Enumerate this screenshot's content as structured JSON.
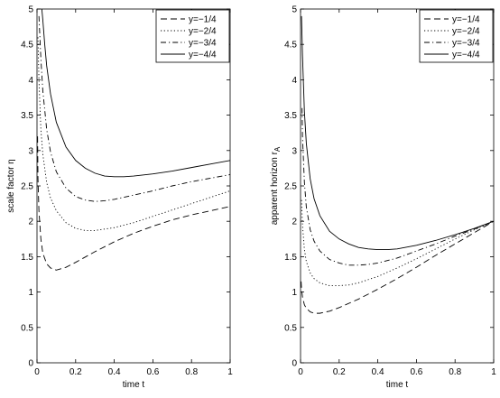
{
  "chart_data": [
    {
      "type": "line",
      "xlabel": "time t",
      "ylabel": "scale factor η",
      "xlim": [
        0,
        1
      ],
      "ylim": [
        0,
        5
      ],
      "xticks": [
        "0",
        "0.2",
        "0.4",
        "0.6",
        "0.8",
        "1"
      ],
      "yticks": [
        "0",
        "0.5",
        "1",
        "1.5",
        "2",
        "2.5",
        "3",
        "3.5",
        "4",
        "4.5",
        "5"
      ],
      "grid": false,
      "legend_position": "top-right",
      "series": [
        {
          "name": "y=−1/4",
          "style": "dashed",
          "x": [
            0.003,
            0.005,
            0.01,
            0.02,
            0.03,
            0.05,
            0.07,
            0.1,
            0.15,
            0.2,
            0.3,
            0.4,
            0.5,
            0.6,
            0.7,
            0.8,
            0.9,
            1.0
          ],
          "y": [
            3.2,
            2.6,
            2.15,
            1.75,
            1.55,
            1.4,
            1.34,
            1.31,
            1.35,
            1.42,
            1.57,
            1.71,
            1.83,
            1.93,
            2.02,
            2.09,
            2.15,
            2.21
          ]
        },
        {
          "name": "y=−2/4",
          "style": "dotted",
          "x": [
            0.005,
            0.01,
            0.02,
            0.03,
            0.05,
            0.07,
            0.1,
            0.15,
            0.2,
            0.25,
            0.3,
            0.4,
            0.5,
            0.6,
            0.7,
            0.8,
            0.9,
            1.0
          ],
          "y": [
            4.6,
            4.0,
            3.3,
            2.95,
            2.55,
            2.33,
            2.15,
            1.98,
            1.9,
            1.87,
            1.87,
            1.91,
            1.98,
            2.07,
            2.16,
            2.25,
            2.34,
            2.43
          ]
        },
        {
          "name": "y=−3/4",
          "style": "dashdot",
          "x": [
            0.01,
            0.02,
            0.03,
            0.05,
            0.07,
            0.1,
            0.15,
            0.2,
            0.25,
            0.3,
            0.35,
            0.4,
            0.5,
            0.6,
            0.7,
            0.8,
            0.9,
            1.0
          ],
          "y": [
            4.9,
            4.3,
            3.85,
            3.3,
            2.98,
            2.7,
            2.47,
            2.35,
            2.3,
            2.28,
            2.29,
            2.31,
            2.37,
            2.43,
            2.5,
            2.56,
            2.61,
            2.66
          ]
        },
        {
          "name": "y=−4/4",
          "style": "solid",
          "x": [
            0.025,
            0.03,
            0.04,
            0.05,
            0.07,
            0.1,
            0.15,
            0.2,
            0.25,
            0.3,
            0.35,
            0.4,
            0.45,
            0.5,
            0.6,
            0.7,
            0.8,
            0.9,
            1.0
          ],
          "y": [
            5.0,
            4.85,
            4.5,
            4.2,
            3.8,
            3.4,
            3.05,
            2.86,
            2.75,
            2.68,
            2.64,
            2.63,
            2.63,
            2.64,
            2.67,
            2.71,
            2.76,
            2.81,
            2.86
          ]
        }
      ]
    },
    {
      "type": "line",
      "xlabel": "time t",
      "ylabel": "apparent horizon r",
      "ylabel_sub": "A",
      "xlim": [
        0,
        1
      ],
      "ylim": [
        0,
        5
      ],
      "xticks": [
        "0",
        "0.2",
        "0.4",
        "0.6",
        "0.8",
        "1"
      ],
      "yticks": [
        "0",
        "0.5",
        "1",
        "1.5",
        "2",
        "2.5",
        "3",
        "3.5",
        "4",
        "4.5",
        "5"
      ],
      "grid": false,
      "legend_position": "top-right",
      "series": [
        {
          "name": "y=−1/4",
          "style": "dashed",
          "x": [
            0.003,
            0.005,
            0.01,
            0.02,
            0.03,
            0.05,
            0.07,
            0.1,
            0.15,
            0.2,
            0.3,
            0.4,
            0.5,
            0.6,
            0.7,
            0.8,
            0.9,
            1.0
          ],
          "y": [
            1.15,
            1.05,
            0.93,
            0.82,
            0.77,
            0.72,
            0.7,
            0.7,
            0.73,
            0.78,
            0.9,
            1.04,
            1.19,
            1.35,
            1.52,
            1.68,
            1.84,
            2.0
          ]
        },
        {
          "name": "y=−2/4",
          "style": "dotted",
          "x": [
            0.005,
            0.01,
            0.02,
            0.03,
            0.05,
            0.07,
            0.1,
            0.15,
            0.2,
            0.25,
            0.3,
            0.4,
            0.5,
            0.6,
            0.7,
            0.8,
            0.9,
            1.0
          ],
          "y": [
            2.3,
            1.95,
            1.6,
            1.43,
            1.27,
            1.19,
            1.13,
            1.09,
            1.09,
            1.1,
            1.13,
            1.22,
            1.34,
            1.47,
            1.61,
            1.75,
            1.88,
            2.0
          ]
        },
        {
          "name": "y=−3/4",
          "style": "dashdot",
          "x": [
            0.008,
            0.01,
            0.02,
            0.03,
            0.05,
            0.07,
            0.1,
            0.15,
            0.2,
            0.25,
            0.3,
            0.35,
            0.4,
            0.5,
            0.6,
            0.7,
            0.8,
            0.9,
            1.0
          ],
          "y": [
            3.6,
            3.2,
            2.55,
            2.2,
            1.88,
            1.72,
            1.58,
            1.46,
            1.41,
            1.38,
            1.38,
            1.39,
            1.41,
            1.48,
            1.58,
            1.68,
            1.79,
            1.89,
            2.0
          ]
        },
        {
          "name": "y=−4/4",
          "style": "solid",
          "x": [
            0.005,
            0.01,
            0.02,
            0.03,
            0.05,
            0.07,
            0.1,
            0.15,
            0.2,
            0.25,
            0.3,
            0.35,
            0.4,
            0.45,
            0.5,
            0.6,
            0.7,
            0.8,
            0.9,
            1.0
          ],
          "y": [
            4.9,
            4.35,
            3.55,
            3.1,
            2.6,
            2.32,
            2.08,
            1.86,
            1.75,
            1.68,
            1.63,
            1.61,
            1.6,
            1.6,
            1.61,
            1.66,
            1.73,
            1.81,
            1.9,
            2.0
          ]
        }
      ]
    }
  ]
}
